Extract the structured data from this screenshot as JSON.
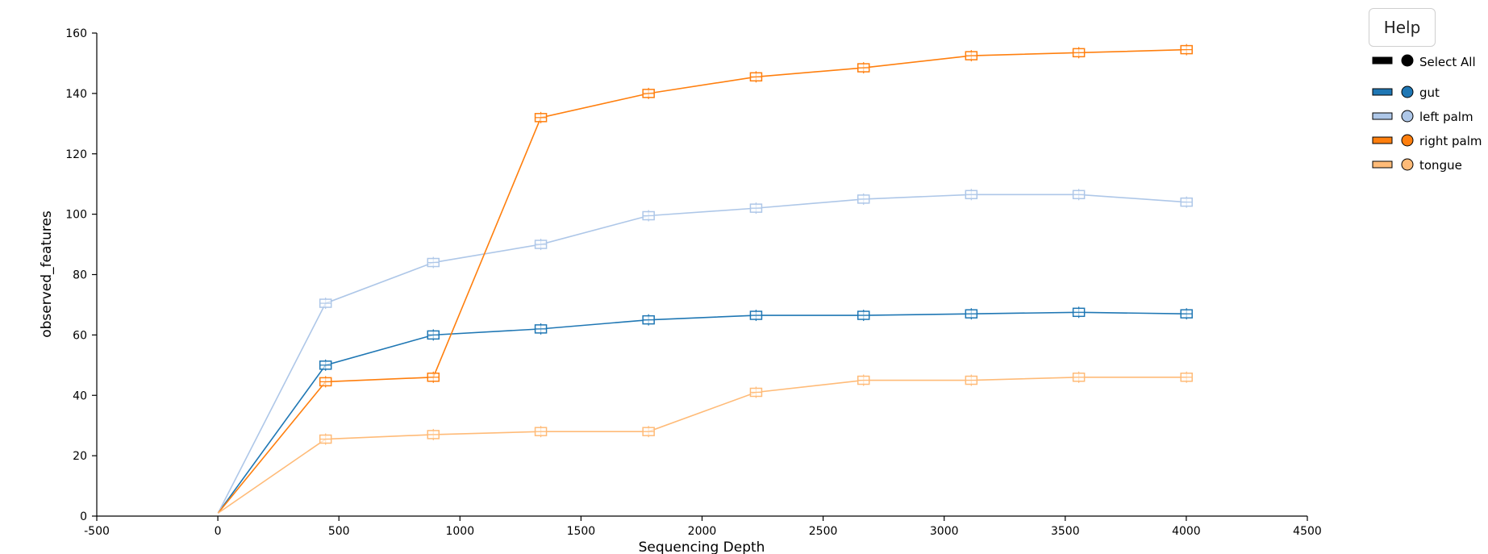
{
  "help_label": "Help",
  "select_all_label": "Select All",
  "chart_data": {
    "type": "line",
    "xlabel": "Sequencing Depth",
    "ylabel": "observed_features",
    "xlim": [
      -500,
      4500
    ],
    "ylim": [
      0,
      160
    ],
    "xticks": [
      "-500",
      "0",
      "500",
      "1000",
      "1500",
      "2000",
      "2500",
      "3000",
      "3500",
      "4000",
      "4500"
    ],
    "yticks": [
      "0",
      "20",
      "40",
      "60",
      "80",
      "100",
      "120",
      "140",
      "160"
    ],
    "legend_position": "top-right",
    "x": [
      1,
      445,
      890,
      1334,
      1779,
      2223,
      2667,
      3112,
      3556,
      4001
    ],
    "series": [
      {
        "name": "gut",
        "color": "#1f77b4",
        "values": [
          1,
          50,
          60,
          62,
          65,
          66.5,
          66.5,
          67,
          67.5,
          67
        ]
      },
      {
        "name": "left palm",
        "color": "#aec7e8",
        "values": [
          1,
          70.5,
          84,
          90,
          99.5,
          102,
          105,
          106.5,
          106.5,
          104
        ]
      },
      {
        "name": "right palm",
        "color": "#ff7f0e",
        "values": [
          1,
          44.5,
          46,
          132,
          140,
          145.5,
          148.5,
          152.5,
          153.5,
          154.5
        ]
      },
      {
        "name": "tongue",
        "color": "#ffbb78",
        "values": [
          1,
          25.5,
          27,
          28,
          28,
          41,
          45,
          45,
          46,
          46
        ]
      }
    ]
  }
}
